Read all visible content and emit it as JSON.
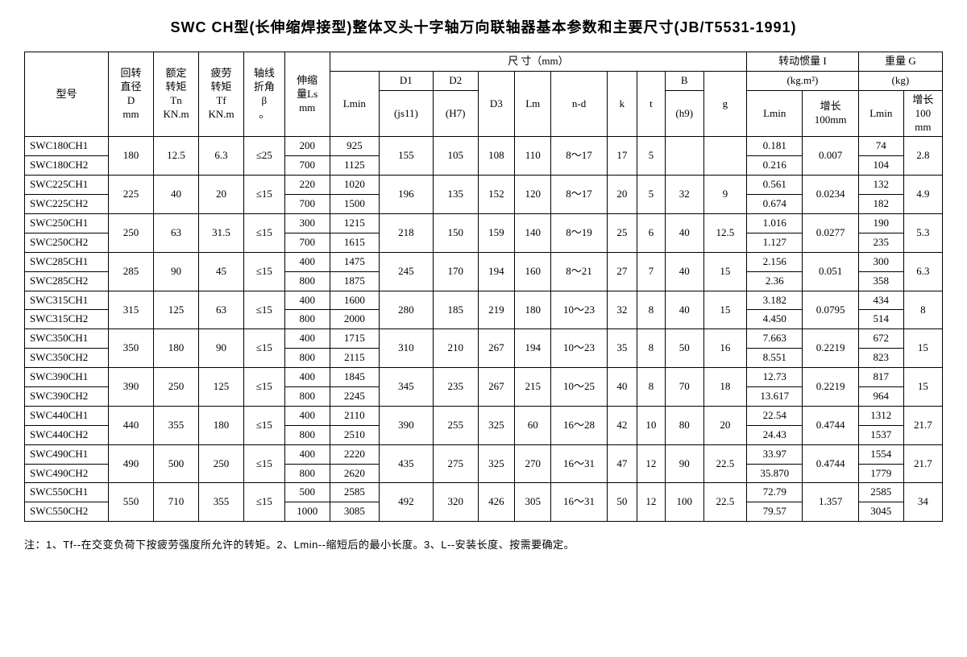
{
  "title": "SWC CH型(长伸缩焊接型)整体叉头十字轴万向联轴器基本参数和主要尺寸(JB/T5531-1991)",
  "headers": {
    "model": "型号",
    "D": "回转\n直径\nD\nmm",
    "Tn": "额定\n转矩\nTn\nKN.m",
    "Tf": "疲劳\n转矩\nTf\nKN.m",
    "beta": "轴线\n折角\nβ\n。",
    "Ls": "伸缩\n量Ls\nmm",
    "dim": "尺 寸（mm）",
    "Lmin": "Lmin",
    "D1": "D1",
    "D1sub": "(js11)",
    "D2": "D2",
    "D2sub": "(H7)",
    "D3": "D3",
    "Lm": "Lm",
    "nd": "n-d",
    "k": "k",
    "t": "t",
    "B": "B",
    "Bsub": "(h9)",
    "g": "g",
    "I": "转动惯量 I",
    "Iunit": "(kg.m²)",
    "ILmin": "Lmin",
    "I100": "增长\n100mm",
    "G": "重量 G",
    "Gunit": "(kg)",
    "GLmin": "Lmin",
    "G100": "增长\n100\nmm"
  },
  "groups": [
    {
      "m1": "SWC180CH1",
      "m2": "SWC180CH2",
      "D": "180",
      "Tn": "12.5",
      "Tf": "6.3",
      "beta": "≤25",
      "Ls1": "200",
      "Ls2": "700",
      "Lmin1": "925",
      "Lmin2": "1125",
      "D1": "155",
      "D2": "105",
      "D3": "108",
      "Lm": "110",
      "nd": "8～17",
      "k": "17",
      "t": "5",
      "B": "",
      "g": "",
      "ILmin1": "0.181",
      "ILmin2": "0.216",
      "I100": "0.007",
      "GLmin1": "74",
      "GLmin2": "104",
      "G100": "2.8"
    },
    {
      "m1": "SWC225CH1",
      "m2": "SWC225CH2",
      "D": "225",
      "Tn": "40",
      "Tf": "20",
      "beta": "≤15",
      "Ls1": "220",
      "Ls2": "700",
      "Lmin1": "1020",
      "Lmin2": "1500",
      "D1": "196",
      "D2": "135",
      "D3": "152",
      "Lm": "120",
      "nd": "8～17",
      "k": "20",
      "t": "5",
      "B": "32",
      "g": "9",
      "ILmin1": "0.561",
      "ILmin2": "0.674",
      "I100": "0.0234",
      "GLmin1": "132",
      "GLmin2": "182",
      "G100": "4.9"
    },
    {
      "m1": "SWC250CH1",
      "m2": "SWC250CH2",
      "D": "250",
      "Tn": "63",
      "Tf": "31.5",
      "beta": "≤15",
      "Ls1": "300",
      "Ls2": "700",
      "Lmin1": "1215",
      "Lmin2": "1615",
      "D1": "218",
      "D2": "150",
      "D3": "159",
      "Lm": "140",
      "nd": "8～19",
      "k": "25",
      "t": "6",
      "B": "40",
      "g": "12.5",
      "ILmin1": "1.016",
      "ILmin2": "1.127",
      "I100": "0.0277",
      "GLmin1": "190",
      "GLmin2": "235",
      "G100": "5.3"
    },
    {
      "m1": "SWC285CH1",
      "m2": "SWC285CH2",
      "D": "285",
      "Tn": "90",
      "Tf": "45",
      "beta": "≤15",
      "Ls1": "400",
      "Ls2": "800",
      "Lmin1": "1475",
      "Lmin2": "1875",
      "D1": "245",
      "D2": "170",
      "D3": "194",
      "Lm": "160",
      "nd": "8～21",
      "k": "27",
      "t": "7",
      "B": "40",
      "g": "15",
      "ILmin1": "2.156",
      "ILmin2": "2.36",
      "I100": "0.051",
      "GLmin1": "300",
      "GLmin2": "358",
      "G100": "6.3"
    },
    {
      "m1": "SWC315CH1",
      "m2": "SWC315CH2",
      "D": "315",
      "Tn": "125",
      "Tf": "63",
      "beta": "≤15",
      "Ls1": "400",
      "Ls2": "800",
      "Lmin1": "1600",
      "Lmin2": "2000",
      "D1": "280",
      "D2": "185",
      "D3": "219",
      "Lm": "180",
      "nd": "10～23",
      "k": "32",
      "t": "8",
      "B": "40",
      "g": "15",
      "ILmin1": "3.182",
      "ILmin2": "4.450",
      "I100": "0.0795",
      "GLmin1": "434",
      "GLmin2": "514",
      "G100": "8"
    },
    {
      "m1": "SWC350CH1",
      "m2": "SWC350CH2",
      "D": "350",
      "Tn": "180",
      "Tf": "90",
      "beta": "≤15",
      "Ls1": "400",
      "Ls2": "800",
      "Lmin1": "1715",
      "Lmin2": "2115",
      "D1": "310",
      "D2": "210",
      "D3": "267",
      "Lm": "194",
      "nd": "10～23",
      "k": "35",
      "t": "8",
      "B": "50",
      "g": "16",
      "ILmin1": "7.663",
      "ILmin2": "8.551",
      "I100": "0.2219",
      "GLmin1": "672",
      "GLmin2": "823",
      "G100": "15"
    },
    {
      "m1": "SWC390CH1",
      "m2": "SWC390CH2",
      "D": "390",
      "Tn": "250",
      "Tf": "125",
      "beta": "≤15",
      "Ls1": "400",
      "Ls2": "800",
      "Lmin1": "1845",
      "Lmin2": "2245",
      "D1": "345",
      "D2": "235",
      "D3": "267",
      "Lm": "215",
      "nd": "10～25",
      "k": "40",
      "t": "8",
      "B": "70",
      "g": "18",
      "ILmin1": "12.73",
      "ILmin2": "13.617",
      "I100": "0.2219",
      "GLmin1": "817",
      "GLmin2": "964",
      "G100": "15"
    },
    {
      "m1": "SWC440CH1",
      "m2": "SWC440CH2",
      "D": "440",
      "Tn": "355",
      "Tf": "180",
      "beta": "≤15",
      "Ls1": "400",
      "Ls2": "800",
      "Lmin1": "2110",
      "Lmin2": "2510",
      "D1": "390",
      "D2": "255",
      "D3": "325",
      "Lm": "60",
      "nd": "16～28",
      "k": "42",
      "t": "10",
      "B": "80",
      "g": "20",
      "ILmin1": "22.54",
      "ILmin2": "24.43",
      "I100": "0.4744",
      "GLmin1": "1312",
      "GLmin2": "1537",
      "G100": "21.7"
    },
    {
      "m1": "SWC490CH1",
      "m2": "SWC490CH2",
      "D": "490",
      "Tn": "500",
      "Tf": "250",
      "beta": "≤15",
      "Ls1": "400",
      "Ls2": "800",
      "Lmin1": "2220",
      "Lmin2": "2620",
      "D1": "435",
      "D2": "275",
      "D3": "325",
      "Lm": "270",
      "nd": "16～31",
      "k": "47",
      "t": "12",
      "B": "90",
      "g": "22.5",
      "ILmin1": "33.97",
      "ILmin2": "35.870",
      "I100": "0.4744",
      "GLmin1": "1554",
      "GLmin2": "1779",
      "G100": "21.7"
    },
    {
      "m1": "SWC550CH1",
      "m2": "SWC550CH2",
      "D": "550",
      "Tn": "710",
      "Tf": "355",
      "beta": "≤15",
      "Ls1": "500",
      "Ls2": "1000",
      "Lmin1": "2585",
      "Lmin2": "3085",
      "D1": "492",
      "D2": "320",
      "D3": "426",
      "Lm": "305",
      "nd": "16～31",
      "k": "50",
      "t": "12",
      "B": "100",
      "g": "22.5",
      "ILmin1": "72.79",
      "ILmin2": "79.57",
      "I100": "1.357",
      "GLmin1": "2585",
      "GLmin2": "3045",
      "G100": "34"
    }
  ],
  "note": "注：1、Tf--在交变负荷下按疲劳强度所允许的转矩。2、Lmin--缩短后的最小长度。3、L--安装长度、按需要确定。"
}
